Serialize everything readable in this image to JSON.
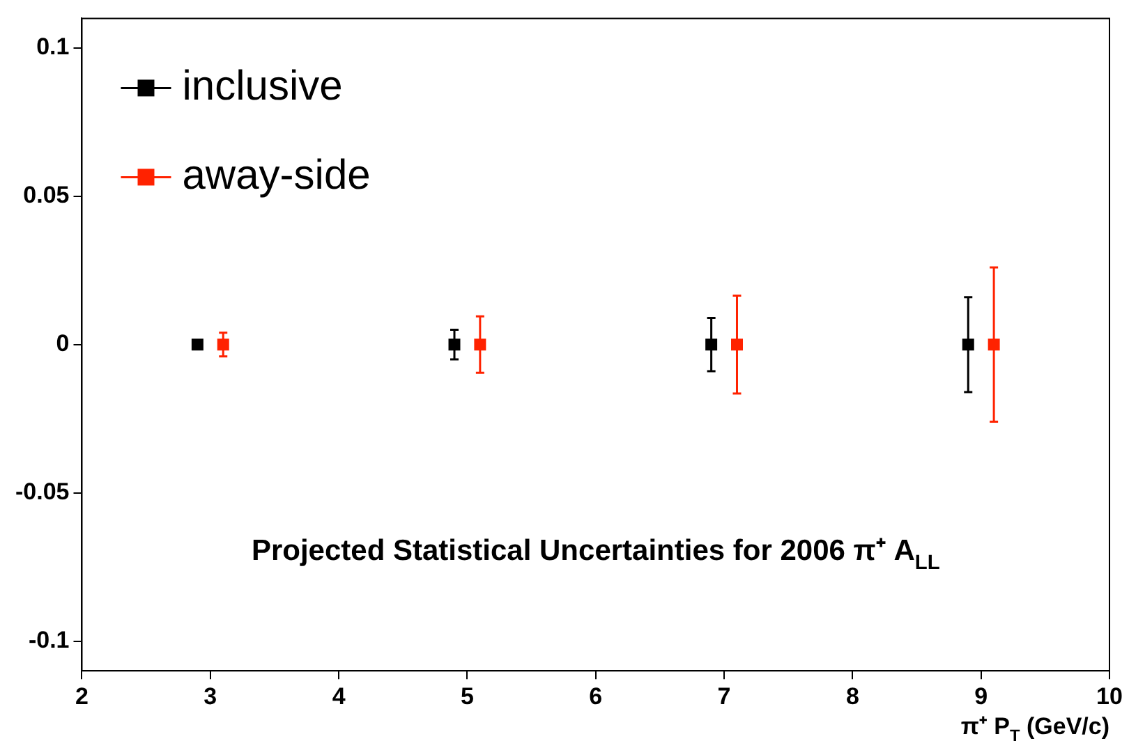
{
  "chart_data": {
    "type": "scatter",
    "xlabel": "π⁺ P$_{T}$ (GeV/c)",
    "annotations": [
      "Projected Statistical Uncertainties for 2006 π⁺ A$_{LL}$"
    ],
    "series": [
      {
        "name": "inclusive",
        "color": "#000000",
        "x": [
          2.9,
          4.9,
          6.9,
          8.9
        ],
        "values": [
          0,
          0,
          0,
          0
        ],
        "errors": [
          null,
          0.005,
          0.009,
          0.016
        ]
      },
      {
        "name": "away-side",
        "color": "#ff2200",
        "x": [
          3.1,
          5.1,
          7.1,
          9.1
        ],
        "values": [
          0,
          0,
          0,
          0
        ],
        "errors": [
          0.004,
          0.0095,
          0.0165,
          0.026
        ]
      }
    ],
    "xlim": [
      2,
      10
    ],
    "xticks": [
      2,
      3,
      4,
      5,
      6,
      7,
      8,
      9,
      10
    ],
    "ylim": [
      -0.11,
      0.11
    ],
    "yticks": [
      -0.1,
      -0.05,
      0,
      0.05,
      0.1
    ],
    "grid": false,
    "legend": "top left",
    "marker": "square"
  }
}
